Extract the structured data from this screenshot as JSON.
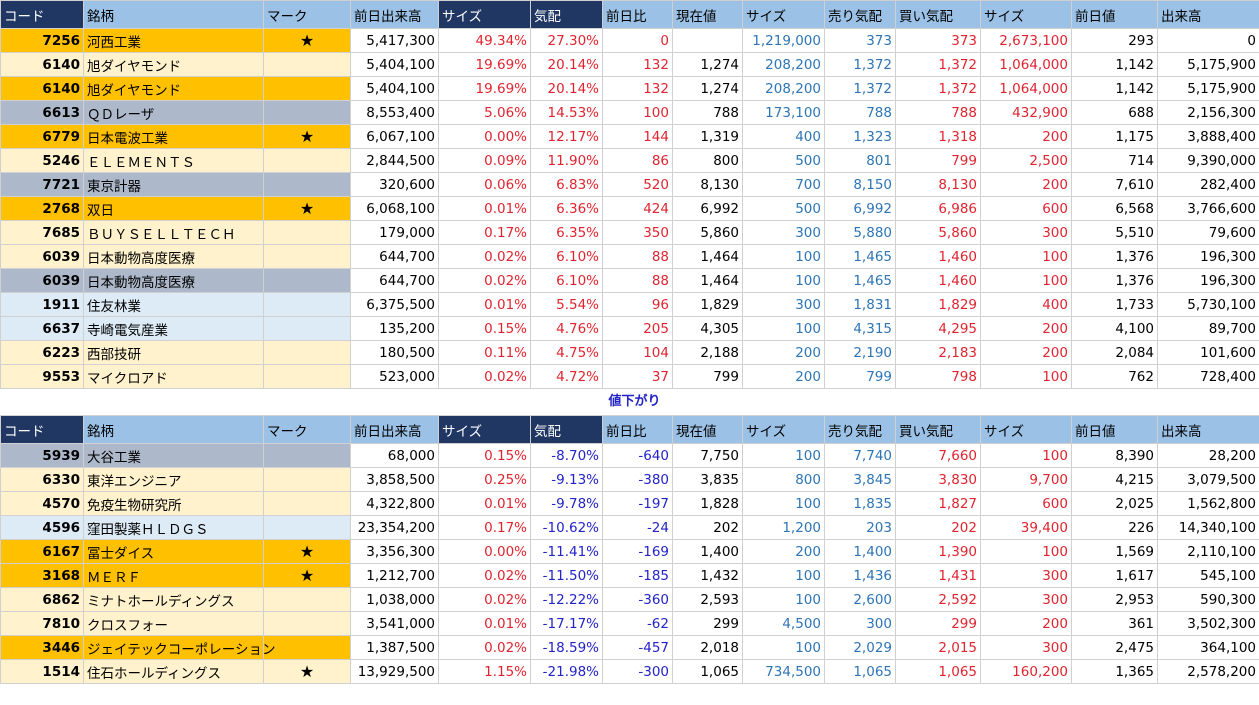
{
  "table1": {
    "headers": [
      "コード",
      "銘柄",
      "マーク",
      "前日出来高",
      "サイズ",
      "気配",
      "前日比",
      "現在値",
      "サイズ",
      "売り気配",
      "買い気配",
      "サイズ",
      "前日値",
      "出来高"
    ],
    "rows": [
      {
        "fill": "#ffc000",
        "cells": [
          "7256",
          "河西工業",
          "★",
          "5,417,300",
          "49.34%",
          "27.30%",
          "0",
          null,
          "1,219,000",
          "373",
          "373",
          "2,673,100",
          "293",
          "0"
        ]
      },
      {
        "fill": "#fff2cc",
        "cells": [
          "6140",
          "旭ダイヤモンド",
          null,
          "5,404,100",
          "19.69%",
          "20.14%",
          "132",
          "1,274",
          "208,200",
          "1,372",
          "1,372",
          "1,064,000",
          "1,142",
          "5,175,900"
        ]
      },
      {
        "fill": "#ffc000",
        "cells": [
          "6140",
          "旭ダイヤモンド",
          null,
          "5,404,100",
          "19.69%",
          "20.14%",
          "132",
          "1,274",
          "208,200",
          "1,372",
          "1,372",
          "1,064,000",
          "1,142",
          "5,175,900"
        ]
      },
      {
        "fill": "#adb9ca",
        "cells": [
          "6613",
          "ＱＤレーザ",
          null,
          "8,553,400",
          "5.06%",
          "14.53%",
          "100",
          "788",
          "173,100",
          "788",
          "788",
          "432,900",
          "688",
          "2,156,300"
        ]
      },
      {
        "fill": "#ffc000",
        "cells": [
          "6779",
          "日本電波工業",
          "★",
          "6,067,100",
          "0.00%",
          "12.17%",
          "144",
          "1,319",
          "400",
          "1,323",
          "1,318",
          "200",
          "1,175",
          "3,888,400"
        ]
      },
      {
        "fill": "#fff2cc",
        "cells": [
          "5246",
          "ＥＬＥＭＥＮＴＳ",
          null,
          "2,844,500",
          "0.09%",
          "11.90%",
          "86",
          "800",
          "500",
          "801",
          "799",
          "2,500",
          "714",
          "9,390,000"
        ]
      },
      {
        "fill": "#adb9ca",
        "cells": [
          "7721",
          "東京計器",
          null,
          "320,600",
          "0.06%",
          "6.83%",
          "520",
          "8,130",
          "700",
          "8,150",
          "8,130",
          "200",
          "7,610",
          "282,400"
        ]
      },
      {
        "fill": "#ffc000",
        "cells": [
          "2768",
          "双日",
          "★",
          "6,068,100",
          "0.01%",
          "6.36%",
          "424",
          "6,992",
          "500",
          "6,992",
          "6,986",
          "600",
          "6,568",
          "3,766,600"
        ]
      },
      {
        "fill": "#fff2cc",
        "cells": [
          "7685",
          "ＢＵＹＳＥＬＬＴＥＣＨ",
          null,
          "179,000",
          "0.17%",
          "6.35%",
          "350",
          "5,860",
          "300",
          "5,880",
          "5,860",
          "300",
          "5,510",
          "79,600"
        ]
      },
      {
        "fill": "#fff2cc",
        "cells": [
          "6039",
          "日本動物高度医療",
          null,
          "644,700",
          "0.02%",
          "6.10%",
          "88",
          "1,464",
          "100",
          "1,465",
          "1,460",
          "100",
          "1,376",
          "196,300"
        ]
      },
      {
        "fill": "#adb9ca",
        "cells": [
          "6039",
          "日本動物高度医療",
          null,
          "644,700",
          "0.02%",
          "6.10%",
          "88",
          "1,464",
          "100",
          "1,465",
          "1,460",
          "100",
          "1,376",
          "196,300"
        ]
      },
      {
        "fill": "#ddebf7",
        "cells": [
          "1911",
          "住友林業",
          null,
          "6,375,500",
          "0.01%",
          "5.54%",
          "96",
          "1,829",
          "300",
          "1,831",
          "1,829",
          "400",
          "1,733",
          "5,730,100"
        ]
      },
      {
        "fill": "#ddebf7",
        "cells": [
          "6637",
          "寺崎電気産業",
          null,
          "135,200",
          "0.15%",
          "4.76%",
          "205",
          "4,305",
          "100",
          "4,315",
          "4,295",
          "200",
          "4,100",
          "89,700"
        ]
      },
      {
        "fill": "#fff2cc",
        "cells": [
          "6223",
          "西部技研",
          null,
          "180,500",
          "0.11%",
          "4.75%",
          "104",
          "2,188",
          "200",
          "2,190",
          "2,183",
          "200",
          "2,084",
          "101,600"
        ]
      },
      {
        "fill": "#fff2cc",
        "cells": [
          "9553",
          "マイクロアド",
          null,
          "523,000",
          "0.02%",
          "4.72%",
          "37",
          "799",
          "200",
          "799",
          "798",
          "100",
          "762",
          "728,400"
        ]
      }
    ]
  },
  "section_label": "値下がり",
  "table2": {
    "headers": [
      "コード",
      "銘柄",
      "マーク",
      "前日出来高",
      "サイズ",
      "気配",
      "前日比",
      "現在値",
      "サイズ",
      "売り気配",
      "買い気配",
      "サイズ",
      "前日値",
      "出来高"
    ],
    "rows": [
      {
        "fill": "#adb9ca",
        "cells": [
          "5939",
          "大谷工業",
          null,
          "68,000",
          "0.15%",
          "-8.70%",
          "-640",
          "7,750",
          "100",
          "7,740",
          "7,660",
          "100",
          "8,390",
          "28,200"
        ]
      },
      {
        "fill": "#fff2cc",
        "cells": [
          "6330",
          "東洋エンジニア",
          null,
          "3,858,500",
          "0.25%",
          "-9.13%",
          "-380",
          "3,835",
          "800",
          "3,845",
          "3,830",
          "9,700",
          "4,215",
          "3,079,500"
        ]
      },
      {
        "fill": "#fff2cc",
        "cells": [
          "4570",
          "免疫生物研究所",
          null,
          "4,322,800",
          "0.01%",
          "-9.78%",
          "-197",
          "1,828",
          "100",
          "1,835",
          "1,827",
          "600",
          "2,025",
          "1,562,800"
        ]
      },
      {
        "fill": "#ddebf7",
        "cells": [
          "4596",
          "窪田製薬ＨＬＤＧＳ",
          null,
          "23,354,200",
          "0.17%",
          "-10.62%",
          "-24",
          "202",
          "1,200",
          "203",
          "202",
          "39,400",
          "226",
          "14,340,100"
        ]
      },
      {
        "fill": "#ffc000",
        "cells": [
          "6167",
          "冨士ダイス",
          "★",
          "3,356,300",
          "0.00%",
          "-11.41%",
          "-169",
          "1,400",
          "200",
          "1,400",
          "1,390",
          "100",
          "1,569",
          "2,110,100"
        ]
      },
      {
        "fill": "#ffc000",
        "cells": [
          "3168",
          "ＭＥＲＦ",
          "★",
          "1,212,700",
          "0.02%",
          "-11.50%",
          "-185",
          "1,432",
          "100",
          "1,436",
          "1,431",
          "300",
          "1,617",
          "545,100"
        ]
      },
      {
        "fill": "#fff2cc",
        "cells": [
          "6862",
          "ミナトホールディングス",
          null,
          "1,038,000",
          "0.02%",
          "-12.22%",
          "-360",
          "2,593",
          "100",
          "2,600",
          "2,592",
          "300",
          "2,953",
          "590,300"
        ]
      },
      {
        "fill": "#fff2cc",
        "cells": [
          "7810",
          "クロスフォー",
          null,
          "3,541,000",
          "0.01%",
          "-17.17%",
          "-62",
          "299",
          "4,500",
          "300",
          "299",
          "200",
          "361",
          "3,502,300"
        ]
      },
      {
        "fill": "#ffc000",
        "cells": [
          "3446",
          "ジェイテックコーポレーション",
          null,
          "1,387,500",
          "0.02%",
          "-18.59%",
          "-457",
          "2,018",
          "100",
          "2,029",
          "2,015",
          "300",
          "2,475",
          "364,100"
        ]
      },
      {
        "fill": "#fff2cc",
        "cells": [
          "1514",
          "住石ホールディングス",
          "★",
          "13,929,500",
          "1.15%",
          "-21.98%",
          "-300",
          "1,065",
          "734,500",
          "1,065",
          "1,065",
          "160,200",
          "1,365",
          "2,578,200"
        ]
      }
    ]
  }
}
